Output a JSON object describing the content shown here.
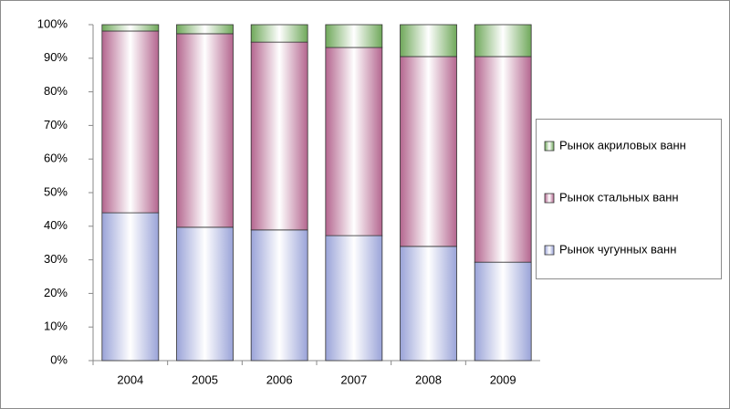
{
  "chart_data": {
    "type": "stacked_bar_100",
    "categories": [
      "2004",
      "2005",
      "2006",
      "2007",
      "2008",
      "2009"
    ],
    "series": [
      {
        "name": "Рынок чугунных ванн",
        "color": "#9aa3d8",
        "values": [
          44.0,
          39.7,
          38.9,
          37.2,
          34.0,
          29.3
        ]
      },
      {
        "name": "Рынок стальных ванн",
        "color": "#b4668f",
        "values": [
          54.1,
          57.6,
          55.9,
          56.0,
          56.5,
          61.2
        ]
      },
      {
        "name": "Рынок акриловых ванн",
        "color": "#6fa85a",
        "values": [
          1.9,
          2.7,
          5.2,
          6.8,
          9.5,
          9.5
        ]
      }
    ],
    "ylim": [
      0,
      100
    ],
    "yticks": [
      {
        "value": 0,
        "label": "0%"
      },
      {
        "value": 10,
        "label": "10%"
      },
      {
        "value": 20,
        "label": "20%"
      },
      {
        "value": 30,
        "label": "30%"
      },
      {
        "value": 40,
        "label": "40%"
      },
      {
        "value": 50,
        "label": "50%"
      },
      {
        "value": 60,
        "label": "60%"
      },
      {
        "value": 70,
        "label": "70%"
      },
      {
        "value": 80,
        "label": "80%"
      },
      {
        "value": 90,
        "label": "90%"
      },
      {
        "value": 100,
        "label": "100%"
      }
    ],
    "legend": "right"
  }
}
